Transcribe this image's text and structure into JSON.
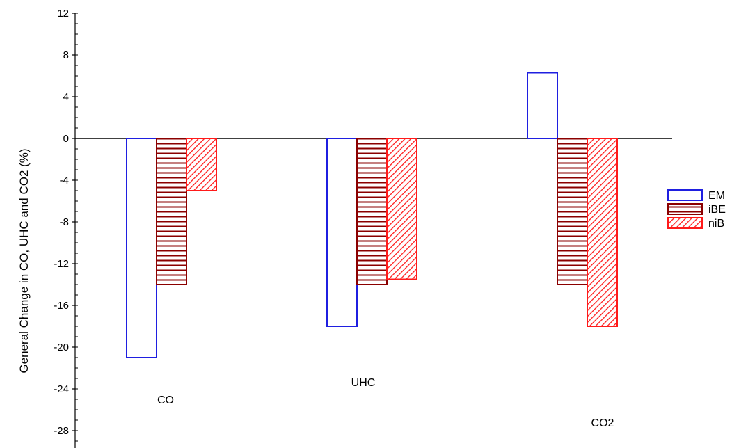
{
  "chart_data": {
    "type": "bar",
    "ylabel": "General Change in CO, UHC and CO2 (%)",
    "ylim": [
      -30,
      12
    ],
    "yticks": [
      12,
      8,
      4,
      0,
      -4,
      -8,
      -12,
      -16,
      -20,
      -24,
      -28
    ],
    "categories": [
      "CO",
      "UHC",
      "CO2"
    ],
    "series": [
      {
        "name": "EM",
        "values": [
          -21,
          -18,
          6.3
        ],
        "color": "#1f1fe0",
        "fill": "none"
      },
      {
        "name": "iBE",
        "values": [
          -14,
          -14,
          -14
        ],
        "color": "#8b0000",
        "fill": "horizontal-hatch"
      },
      {
        "name": "niB",
        "values": [
          -5,
          -13.5,
          -18
        ],
        "color": "#ff1a1a",
        "fill": "diagonal-hatch"
      }
    ],
    "legend_position": "right"
  }
}
